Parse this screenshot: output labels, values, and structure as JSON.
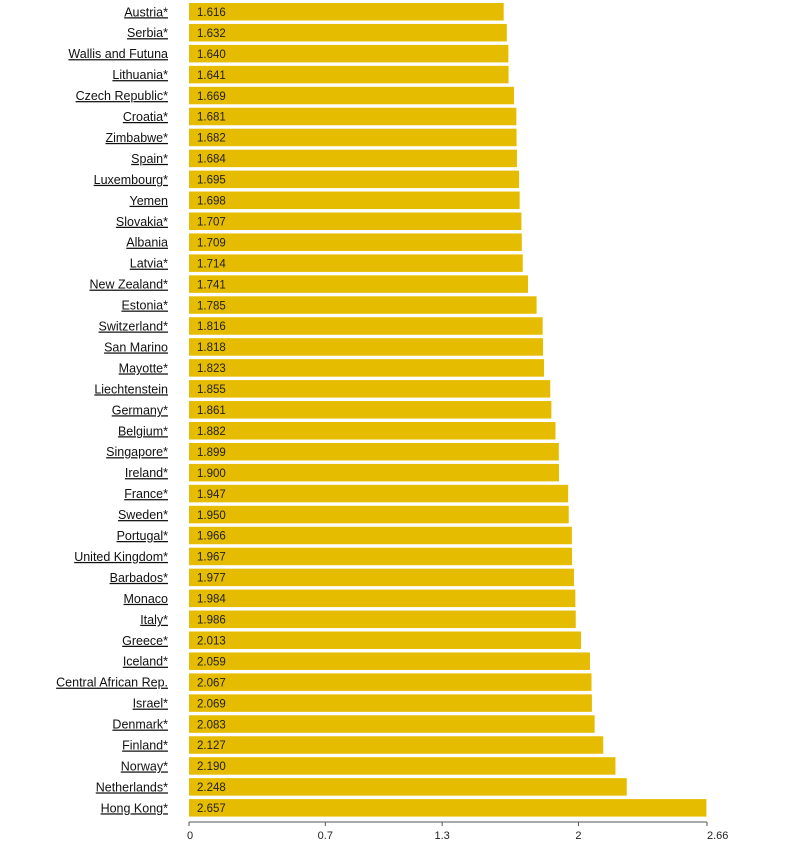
{
  "chart_data": {
    "type": "bar",
    "orientation": "horizontal",
    "categories": [
      "Austria*",
      "Serbia*",
      "Wallis and Futuna",
      "Lithuania*",
      "Czech Republic*",
      "Croatia*",
      "Zimbabwe*",
      "Spain*",
      "Luxembourg*",
      "Yemen",
      "Slovakia*",
      "Albania",
      "Latvia*",
      "New Zealand*",
      "Estonia*",
      "Switzerland*",
      "San Marino",
      "Mayotte*",
      "Liechtenstein",
      "Germany*",
      "Belgium*",
      "Singapore*",
      "Ireland*",
      "France*",
      "Sweden*",
      "Portugal*",
      "United Kingdom*",
      "Barbados*",
      "Monaco",
      "Italy*",
      "Greece*",
      "Iceland*",
      "Central African Rep.",
      "Israel*",
      "Denmark*",
      "Finland*",
      "Norway*",
      "Netherlands*",
      "Hong Kong*"
    ],
    "values": [
      1.616,
      1.632,
      1.64,
      1.641,
      1.669,
      1.681,
      1.682,
      1.684,
      1.695,
      1.698,
      1.707,
      1.709,
      1.714,
      1.741,
      1.785,
      1.816,
      1.818,
      1.823,
      1.855,
      1.861,
      1.882,
      1.899,
      1.9,
      1.947,
      1.95,
      1.966,
      1.967,
      1.977,
      1.984,
      1.986,
      2.013,
      2.059,
      2.067,
      2.069,
      2.083,
      2.127,
      2.19,
      2.248,
      2.657
    ],
    "value_labels": [
      "1.616",
      "1.632",
      "1.640",
      "1.641",
      "1.669",
      "1.681",
      "1.682",
      "1.684",
      "1.695",
      "1.698",
      "1.707",
      "1.709",
      "1.714",
      "1.741",
      "1.785",
      "1.816",
      "1.818",
      "1.823",
      "1.855",
      "1.861",
      "1.882",
      "1.899",
      "1.900",
      "1.947",
      "1.950",
      "1.966",
      "1.967",
      "1.977",
      "1.984",
      "1.986",
      "2.013",
      "2.059",
      "2.067",
      "2.069",
      "2.083",
      "2.127",
      "2.190",
      "2.248",
      "2.657"
    ],
    "xlim": [
      0,
      2.66
    ],
    "x_ticks": [
      0,
      0.7,
      1.3,
      2,
      2.66
    ],
    "x_tick_labels": [
      "0",
      "0.7",
      "1.3",
      "2",
      "2.66"
    ],
    "bar_color": "#E6BC00",
    "grid": false,
    "title": "",
    "xlabel": "",
    "ylabel": ""
  }
}
